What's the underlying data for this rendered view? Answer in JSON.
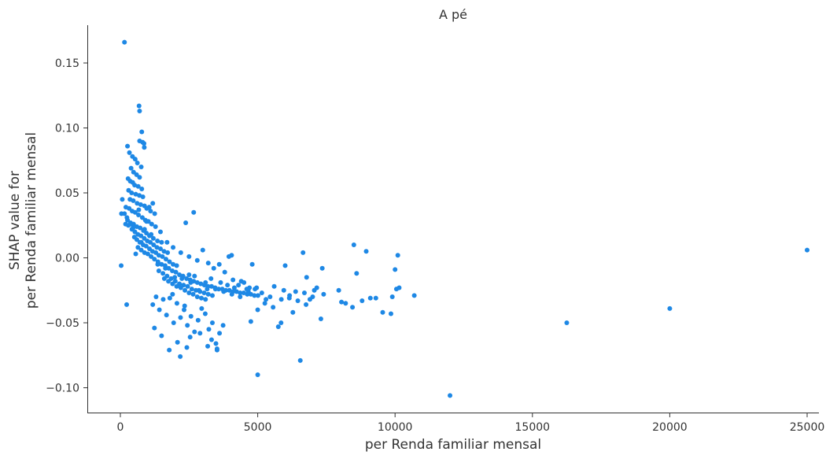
{
  "chart_data": {
    "type": "scatter",
    "title": "A pé",
    "xlabel": "per Renda familiar mensal",
    "ylabel_line1": "SHAP value for",
    "ylabel_line2": "per Renda familiar mensal",
    "xlim": [
      -1200,
      26000
    ],
    "ylim": [
      -0.12,
      0.18
    ],
    "xticks": [
      0,
      5000,
      10000,
      15000,
      20000,
      25000
    ],
    "xtick_labels": [
      "0",
      "5000",
      "10000",
      "15000",
      "20000",
      "25000"
    ],
    "yticks": [
      -0.1,
      -0.05,
      0.0,
      0.05,
      0.1,
      0.15
    ],
    "ytick_labels": [
      "−0.10",
      "−0.05",
      "0.00",
      "0.05",
      "0.10",
      "0.15"
    ],
    "grid": false,
    "legend": "none",
    "colors": {
      "points": "#1e88e5",
      "axis": "#333333"
    },
    "points": [
      [
        150,
        0.166
      ],
      [
        680,
        0.117
      ],
      [
        700,
        0.113
      ],
      [
        780,
        0.097
      ],
      [
        700,
        0.09
      ],
      [
        810,
        0.089
      ],
      [
        860,
        0.088
      ],
      [
        870,
        0.085
      ],
      [
        260,
        0.086
      ],
      [
        330,
        0.081
      ],
      [
        440,
        0.078
      ],
      [
        540,
        0.076
      ],
      [
        620,
        0.073
      ],
      [
        760,
        0.07
      ],
      [
        390,
        0.069
      ],
      [
        480,
        0.066
      ],
      [
        590,
        0.064
      ],
      [
        700,
        0.062
      ],
      [
        280,
        0.061
      ],
      [
        360,
        0.059
      ],
      [
        450,
        0.058
      ],
      [
        520,
        0.056
      ],
      [
        650,
        0.055
      ],
      [
        780,
        0.053
      ],
      [
        300,
        0.052
      ],
      [
        410,
        0.05
      ],
      [
        560,
        0.049
      ],
      [
        690,
        0.048
      ],
      [
        820,
        0.047
      ],
      [
        350,
        0.045
      ],
      [
        470,
        0.044
      ],
      [
        610,
        0.042
      ],
      [
        740,
        0.041
      ],
      [
        880,
        0.04
      ],
      [
        960,
        0.038
      ],
      [
        1100,
        0.036
      ],
      [
        1250,
        0.034
      ],
      [
        1180,
        0.042
      ],
      [
        1050,
        0.039
      ],
      [
        320,
        0.038
      ],
      [
        430,
        0.036
      ],
      [
        540,
        0.035
      ],
      [
        660,
        0.033
      ],
      [
        800,
        0.031
      ],
      [
        910,
        0.029
      ],
      [
        1020,
        0.028
      ],
      [
        1140,
        0.026
      ],
      [
        1280,
        0.024
      ],
      [
        260,
        0.029
      ],
      [
        370,
        0.027
      ],
      [
        480,
        0.026
      ],
      [
        600,
        0.024
      ],
      [
        720,
        0.023
      ],
      [
        840,
        0.021
      ],
      [
        950,
        0.019
      ],
      [
        1060,
        0.017
      ],
      [
        1200,
        0.015
      ],
      [
        1350,
        0.013
      ],
      [
        1500,
        0.012
      ],
      [
        420,
        0.022
      ],
      [
        530,
        0.02
      ],
      [
        640,
        0.018
      ],
      [
        750,
        0.017
      ],
      [
        870,
        0.015
      ],
      [
        980,
        0.013
      ],
      [
        1090,
        0.012
      ],
      [
        1210,
        0.01
      ],
      [
        1330,
        0.008
      ],
      [
        1460,
        0.007
      ],
      [
        1590,
        0.005
      ],
      [
        1720,
        0.004
      ],
      [
        600,
        0.014
      ],
      [
        710,
        0.012
      ],
      [
        830,
        0.01
      ],
      [
        940,
        0.009
      ],
      [
        1060,
        0.007
      ],
      [
        1170,
        0.005
      ],
      [
        1290,
        0.004
      ],
      [
        1400,
        0.002
      ],
      [
        1530,
        0.001
      ],
      [
        1660,
        -0.001
      ],
      [
        1790,
        -0.003
      ],
      [
        1920,
        -0.005
      ],
      [
        2050,
        -0.006
      ],
      [
        760,
        0.006
      ],
      [
        880,
        0.004
      ],
      [
        1000,
        0.003
      ],
      [
        1120,
        0.001
      ],
      [
        1240,
        -0.001
      ],
      [
        1370,
        -0.003
      ],
      [
        1500,
        -0.005
      ],
      [
        1630,
        -0.006
      ],
      [
        1760,
        -0.008
      ],
      [
        1890,
        -0.01
      ],
      [
        2020,
        -0.011
      ],
      [
        2150,
        -0.013
      ],
      [
        2280,
        -0.014
      ],
      [
        2410,
        -0.016
      ],
      [
        2540,
        -0.017
      ],
      [
        2670,
        -0.018
      ],
      [
        2800,
        -0.019
      ],
      [
        2930,
        -0.02
      ],
      [
        3060,
        -0.021
      ],
      [
        3190,
        -0.022
      ],
      [
        3320,
        -0.022
      ],
      [
        3450,
        -0.023
      ],
      [
        3580,
        -0.024
      ],
      [
        3710,
        -0.024
      ],
      [
        3840,
        -0.025
      ],
      [
        3970,
        -0.025
      ],
      [
        4100,
        -0.026
      ],
      [
        4230,
        -0.026
      ],
      [
        4360,
        -0.027
      ],
      [
        4490,
        -0.027
      ],
      [
        4620,
        -0.028
      ],
      [
        4750,
        -0.028
      ],
      [
        4880,
        -0.029
      ],
      [
        5010,
        -0.029
      ],
      [
        1400,
        -0.01
      ],
      [
        1550,
        -0.012
      ],
      [
        1700,
        -0.014
      ],
      [
        1850,
        -0.016
      ],
      [
        2000,
        -0.018
      ],
      [
        2150,
        -0.02
      ],
      [
        2300,
        -0.021
      ],
      [
        2450,
        -0.022
      ],
      [
        2600,
        -0.024
      ],
      [
        2750,
        -0.025
      ],
      [
        2900,
        -0.026
      ],
      [
        3050,
        -0.027
      ],
      [
        3200,
        -0.028
      ],
      [
        3350,
        -0.029
      ],
      [
        1600,
        -0.016
      ],
      [
        1750,
        -0.018
      ],
      [
        1900,
        -0.02
      ],
      [
        2050,
        -0.022
      ],
      [
        2200,
        -0.023
      ],
      [
        2350,
        -0.025
      ],
      [
        2500,
        -0.027
      ],
      [
        2650,
        -0.028
      ],
      [
        2800,
        -0.03
      ],
      [
        2950,
        -0.031
      ],
      [
        3100,
        -0.032
      ],
      [
        200,
        0.039
      ],
      [
        150,
        0.034
      ],
      [
        70,
        0.045
      ],
      [
        40,
        0.034
      ],
      [
        30,
        -0.006
      ],
      [
        230,
        -0.036
      ],
      [
        190,
        0.026
      ],
      [
        240,
        0.031
      ],
      [
        290,
        0.025
      ],
      [
        1180,
        -0.036
      ],
      [
        1300,
        -0.03
      ],
      [
        1420,
        -0.04
      ],
      [
        1560,
        -0.032
      ],
      [
        1680,
        -0.044
      ],
      [
        1800,
        -0.031
      ],
      [
        1940,
        -0.05
      ],
      [
        2060,
        -0.035
      ],
      [
        2190,
        -0.046
      ],
      [
        2320,
        -0.04
      ],
      [
        2440,
        -0.052
      ],
      [
        2570,
        -0.045
      ],
      [
        2700,
        -0.057
      ],
      [
        2830,
        -0.048
      ],
      [
        2960,
        -0.039
      ],
      [
        3090,
        -0.043
      ],
      [
        3220,
        -0.055
      ],
      [
        3350,
        -0.05
      ],
      [
        3480,
        -0.066
      ],
      [
        3610,
        -0.058
      ],
      [
        3740,
        -0.052
      ],
      [
        1240,
        -0.054
      ],
      [
        1500,
        -0.06
      ],
      [
        1780,
        -0.071
      ],
      [
        2080,
        -0.065
      ],
      [
        2180,
        -0.076
      ],
      [
        2420,
        -0.069
      ],
      [
        2540,
        -0.061
      ],
      [
        3180,
        -0.068
      ],
      [
        3520,
        -0.07
      ],
      [
        3320,
        -0.063
      ],
      [
        2900,
        -0.058
      ],
      [
        3520,
        -0.071
      ],
      [
        2340,
        -0.037
      ],
      [
        1900,
        -0.028
      ],
      [
        2380,
        0.027
      ],
      [
        2670,
        0.035
      ],
      [
        1460,
        0.02
      ],
      [
        1700,
        0.012
      ],
      [
        1920,
        0.008
      ],
      [
        2200,
        0.004
      ],
      [
        2500,
        0.001
      ],
      [
        2800,
        -0.002
      ],
      [
        3000,
        0.006
      ],
      [
        3200,
        -0.004
      ],
      [
        3400,
        -0.008
      ],
      [
        3600,
        -0.005
      ],
      [
        3800,
        -0.011
      ],
      [
        3950,
        0.001
      ],
      [
        4050,
        0.002
      ],
      [
        4100,
        -0.017
      ],
      [
        4300,
        -0.021
      ],
      [
        4500,
        -0.019
      ],
      [
        4700,
        -0.023
      ],
      [
        4800,
        -0.005
      ],
      [
        4900,
        -0.024
      ],
      [
        5000,
        -0.04
      ],
      [
        5150,
        -0.027
      ],
      [
        5300,
        -0.032
      ],
      [
        5450,
        -0.03
      ],
      [
        5600,
        -0.022
      ],
      [
        5750,
        -0.053
      ],
      [
        5850,
        -0.05
      ],
      [
        5950,
        -0.025
      ],
      [
        6000,
        -0.006
      ],
      [
        6150,
        -0.031
      ],
      [
        6280,
        -0.042
      ],
      [
        6380,
        -0.026
      ],
      [
        6550,
        -0.079
      ],
      [
        6650,
        0.004
      ],
      [
        6700,
        -0.027
      ],
      [
        6900,
        -0.032
      ],
      [
        7000,
        -0.03
      ],
      [
        6780,
        -0.015
      ],
      [
        7150,
        -0.023
      ],
      [
        7300,
        -0.047
      ],
      [
        7400,
        -0.028
      ],
      [
        7350,
        -0.008
      ],
      [
        7950,
        -0.025
      ],
      [
        8050,
        -0.034
      ],
      [
        8200,
        -0.035
      ],
      [
        8500,
        0.01
      ],
      [
        8450,
        -0.038
      ],
      [
        8600,
        -0.012
      ],
      [
        8800,
        -0.033
      ],
      [
        8950,
        0.005
      ],
      [
        9100,
        -0.031
      ],
      [
        9300,
        -0.031
      ],
      [
        9550,
        -0.042
      ],
      [
        9850,
        -0.043
      ],
      [
        9900,
        -0.03
      ],
      [
        10000,
        -0.009
      ],
      [
        10050,
        -0.024
      ],
      [
        10100,
        0.002
      ],
      [
        10150,
        -0.023
      ],
      [
        10700,
        -0.029
      ],
      [
        5000,
        -0.09
      ],
      [
        4750,
        -0.049
      ],
      [
        12000,
        -0.106
      ],
      [
        16250,
        -0.05
      ],
      [
        20000,
        -0.039
      ],
      [
        25000,
        0.006
      ],
      [
        3300,
        -0.016
      ],
      [
        3650,
        -0.019
      ],
      [
        3900,
        -0.021
      ],
      [
        4150,
        -0.023
      ],
      [
        4400,
        -0.018
      ],
      [
        4600,
        -0.024
      ],
      [
        4650,
        -0.025
      ],
      [
        3100,
        -0.019
      ],
      [
        2700,
        -0.014
      ],
      [
        2500,
        -0.013
      ],
      [
        950,
        0.028
      ],
      [
        880,
        0.022
      ],
      [
        760,
        0.012
      ],
      [
        640,
        0.008
      ],
      [
        560,
        0.003
      ],
      [
        510,
        0.016
      ],
      [
        460,
        0.023
      ],
      [
        380,
        0.026
      ],
      [
        670,
        0.037
      ],
      [
        1120,
        0.018
      ],
      [
        1360,
        -0.005
      ],
      [
        1640,
        -0.008
      ],
      [
        1980,
        -0.015
      ],
      [
        2240,
        -0.016
      ],
      [
        2560,
        -0.019
      ],
      [
        2860,
        -0.025
      ],
      [
        3160,
        -0.024
      ],
      [
        3460,
        -0.024
      ],
      [
        3760,
        -0.026
      ],
      [
        4060,
        -0.028
      ],
      [
        4360,
        -0.03
      ],
      [
        4660,
        -0.026
      ],
      [
        4960,
        -0.023
      ],
      [
        5260,
        -0.035
      ],
      [
        5560,
        -0.038
      ],
      [
        5860,
        -0.032
      ],
      [
        6160,
        -0.029
      ],
      [
        6460,
        -0.033
      ],
      [
        6760,
        -0.036
      ],
      [
        7060,
        -0.025
      ]
    ]
  }
}
